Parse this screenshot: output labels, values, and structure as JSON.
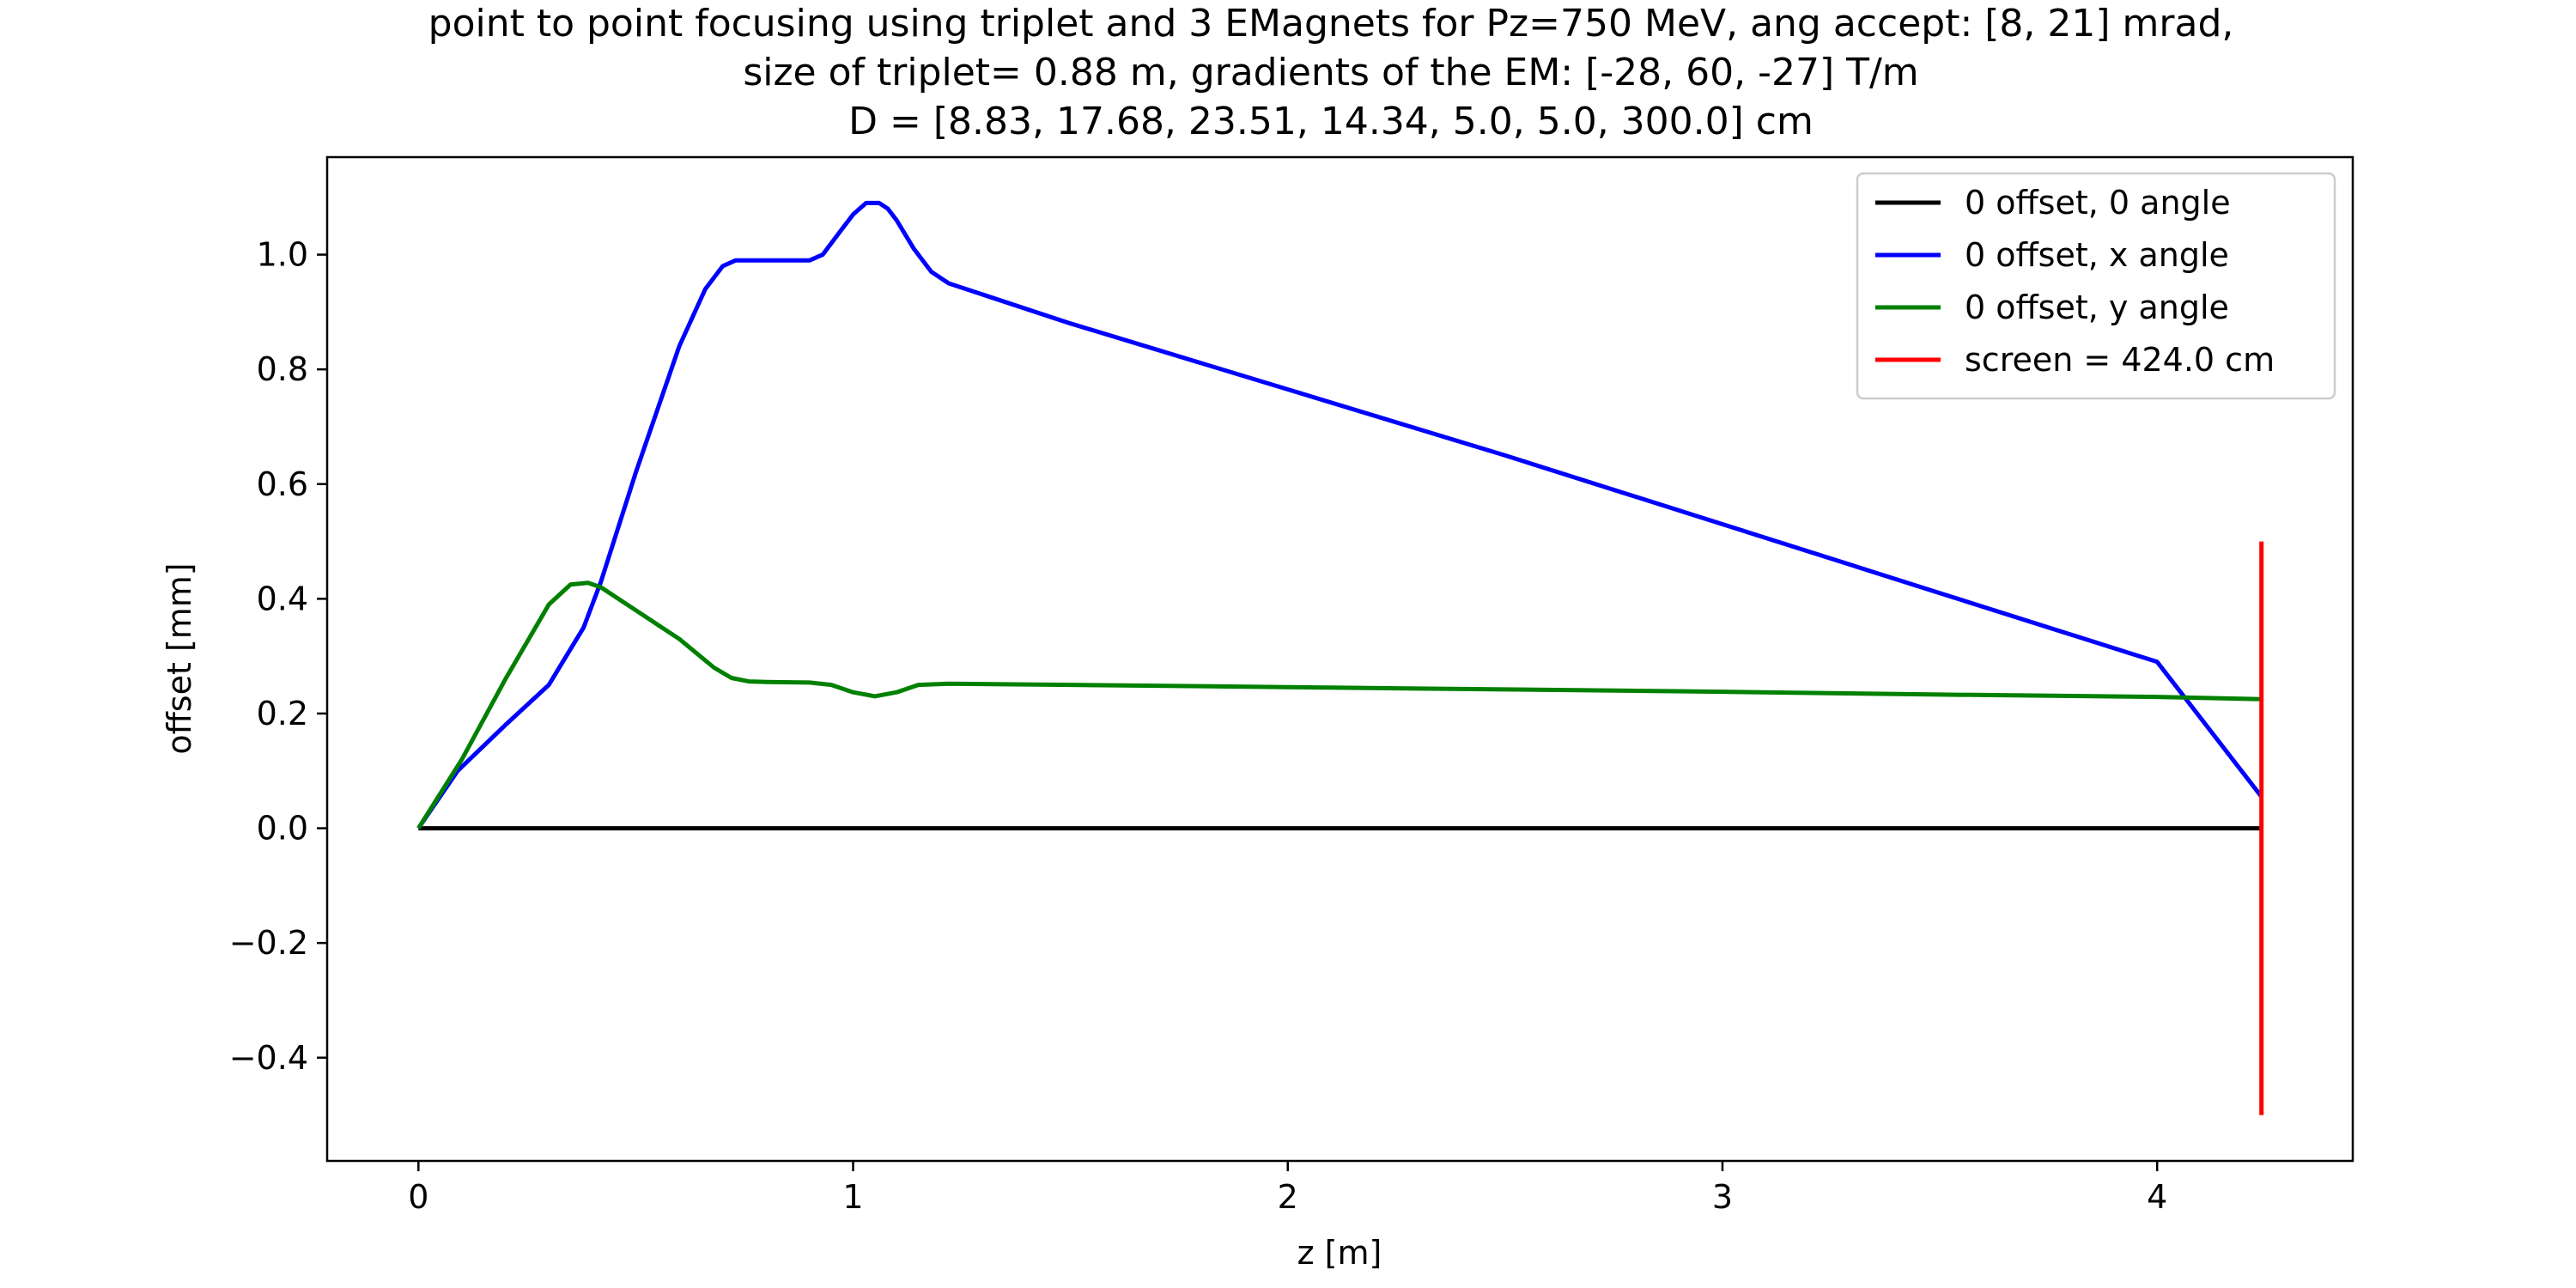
{
  "chart_data": {
    "type": "line",
    "title_lines": [
      "point to point focusing using triplet and 3 EMagnets for Pz=750 MeV, ang accept: [8, 21] mrad,",
      "size of triplet= 0.88 m, gradients of the EM: [-28, 60, -27] T/m",
      "D = [8.83, 17.68, 23.51, 14.34, 5.0, 5.0, 300.0] cm"
    ],
    "xlabel": "z [m]",
    "ylabel": "offset [mm]",
    "xlim": [
      -0.21,
      4.45
    ],
    "ylim": [
      -0.58,
      1.17
    ],
    "xticks": [
      {
        "value": 0,
        "label": "0"
      },
      {
        "value": 1,
        "label": "1"
      },
      {
        "value": 2,
        "label": "2"
      },
      {
        "value": 3,
        "label": "3"
      },
      {
        "value": 4,
        "label": "4"
      }
    ],
    "yticks": [
      {
        "value": -0.4,
        "label": "−0.4"
      },
      {
        "value": -0.2,
        "label": "−0.2"
      },
      {
        "value": 0.0,
        "label": "0.0"
      },
      {
        "value": 0.2,
        "label": "0.2"
      },
      {
        "value": 0.4,
        "label": "0.4"
      },
      {
        "value": 0.6,
        "label": "0.6"
      },
      {
        "value": 0.8,
        "label": "0.8"
      },
      {
        "value": 1.0,
        "label": "1.0"
      }
    ],
    "grid": false,
    "legend_position": "top-right",
    "series": [
      {
        "name": "0 offset, 0 angle",
        "color": "#000000",
        "x": [
          0,
          4.24
        ],
        "y": [
          0,
          0
        ]
      },
      {
        "name": "0 offset, x angle",
        "color": "#0000ff",
        "x": [
          0,
          0.09,
          0.2,
          0.3,
          0.34,
          0.38,
          0.42,
          0.5,
          0.6,
          0.66,
          0.7,
          0.73,
          0.77,
          0.85,
          0.9,
          0.93,
          0.97,
          1.0,
          1.03,
          1.06,
          1.08,
          1.1,
          1.14,
          1.18,
          1.22,
          1.5,
          2.0,
          2.5,
          3.0,
          3.5,
          4.0,
          4.24
        ],
        "y": [
          0,
          0.1,
          0.18,
          0.25,
          0.3,
          0.35,
          0.43,
          0.62,
          0.84,
          0.94,
          0.98,
          0.99,
          0.99,
          0.99,
          0.99,
          1.0,
          1.04,
          1.07,
          1.09,
          1.09,
          1.08,
          1.06,
          1.01,
          0.97,
          0.95,
          0.88,
          0.765,
          0.65,
          0.53,
          0.41,
          0.29,
          0.055
        ]
      },
      {
        "name": "0 offset, y angle",
        "color": "#008000",
        "x": [
          0,
          0.1,
          0.2,
          0.3,
          0.35,
          0.39,
          0.42,
          0.5,
          0.6,
          0.68,
          0.72,
          0.76,
          0.8,
          0.9,
          0.95,
          1.0,
          1.05,
          1.1,
          1.15,
          1.22,
          1.5,
          2.0,
          2.5,
          3.0,
          3.5,
          4.0,
          4.24
        ],
        "y": [
          0,
          0.12,
          0.26,
          0.39,
          0.425,
          0.428,
          0.42,
          0.38,
          0.33,
          0.28,
          0.262,
          0.256,
          0.255,
          0.254,
          0.25,
          0.237,
          0.23,
          0.237,
          0.25,
          0.252,
          0.25,
          0.246,
          0.242,
          0.238,
          0.233,
          0.229,
          0.225
        ]
      },
      {
        "name": "screen = 424.0 cm",
        "color": "#ff0000",
        "x": [
          4.24,
          4.24
        ],
        "y": [
          -0.5,
          0.5
        ]
      }
    ]
  }
}
